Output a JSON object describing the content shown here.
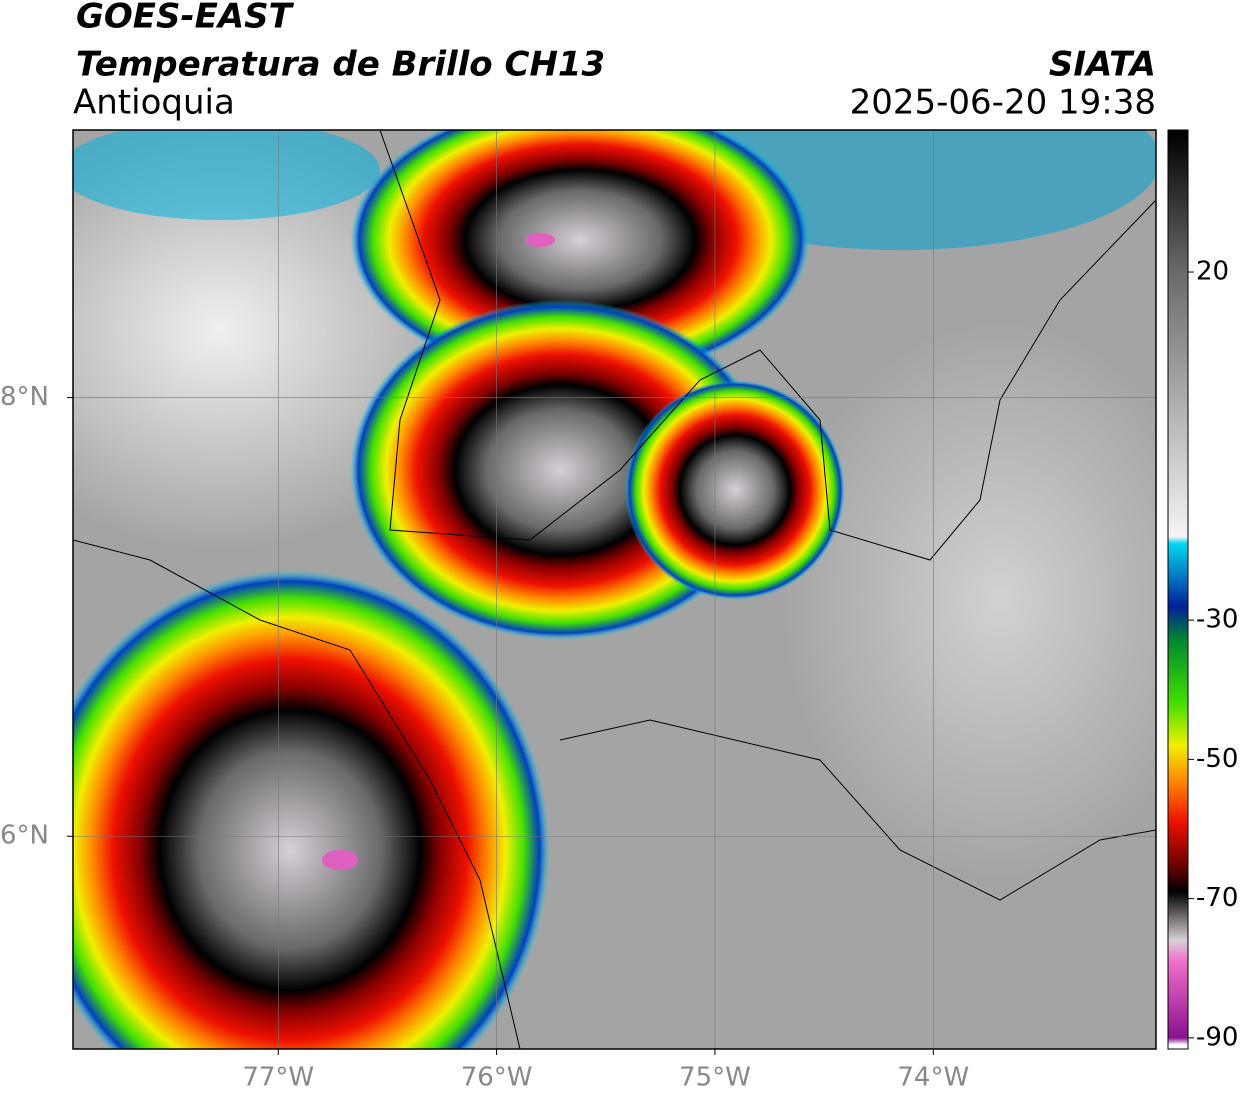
{
  "map": {
    "title": "GOES-EAST",
    "subtitle": "Temperatura de Brillo CH13",
    "region": "Antioquia",
    "source": "SIATA",
    "timestamp": "2025-06-20 19:38",
    "xlim": [
      -77.94,
      -72.98
    ],
    "ylim": [
      5.03,
      9.22
    ],
    "xticks": [
      {
        "value": -77,
        "label": "77°W"
      },
      {
        "value": -76,
        "label": "76°W"
      },
      {
        "value": -75,
        "label": "75°W"
      },
      {
        "value": -74,
        "label": "74°W"
      }
    ],
    "yticks": [
      {
        "value": 8,
        "label": "8°N"
      },
      {
        "value": 6,
        "label": "6°N"
      }
    ],
    "grid": true,
    "colorbar": {
      "clim": [
        -91.6,
        40.4
      ],
      "ticks": [
        20,
        -30,
        -50,
        -70,
        -90
      ],
      "colormap": [
        {
          "value": 40,
          "color": "#000000"
        },
        {
          "value": 20,
          "color": "#6a6a6a"
        },
        {
          "value": -18,
          "color": "#f4f4f4"
        },
        {
          "value": -19,
          "color": "#00d8f0"
        },
        {
          "value": -28,
          "color": "#00209a"
        },
        {
          "value": -33,
          "color": "#008a30"
        },
        {
          "value": -42,
          "color": "#44e000"
        },
        {
          "value": -48,
          "color": "#f0f000"
        },
        {
          "value": -53,
          "color": "#ff8a00"
        },
        {
          "value": -59,
          "color": "#ee1000"
        },
        {
          "value": -66,
          "color": "#5a0000"
        },
        {
          "value": -69,
          "color": "#000000"
        },
        {
          "value": -76,
          "color": "#d8d0d8"
        },
        {
          "value": -79,
          "color": "#f070c8"
        },
        {
          "value": -90,
          "color": "#8a1090"
        },
        {
          "value": -91,
          "color": "#ffffff"
        }
      ]
    }
  }
}
